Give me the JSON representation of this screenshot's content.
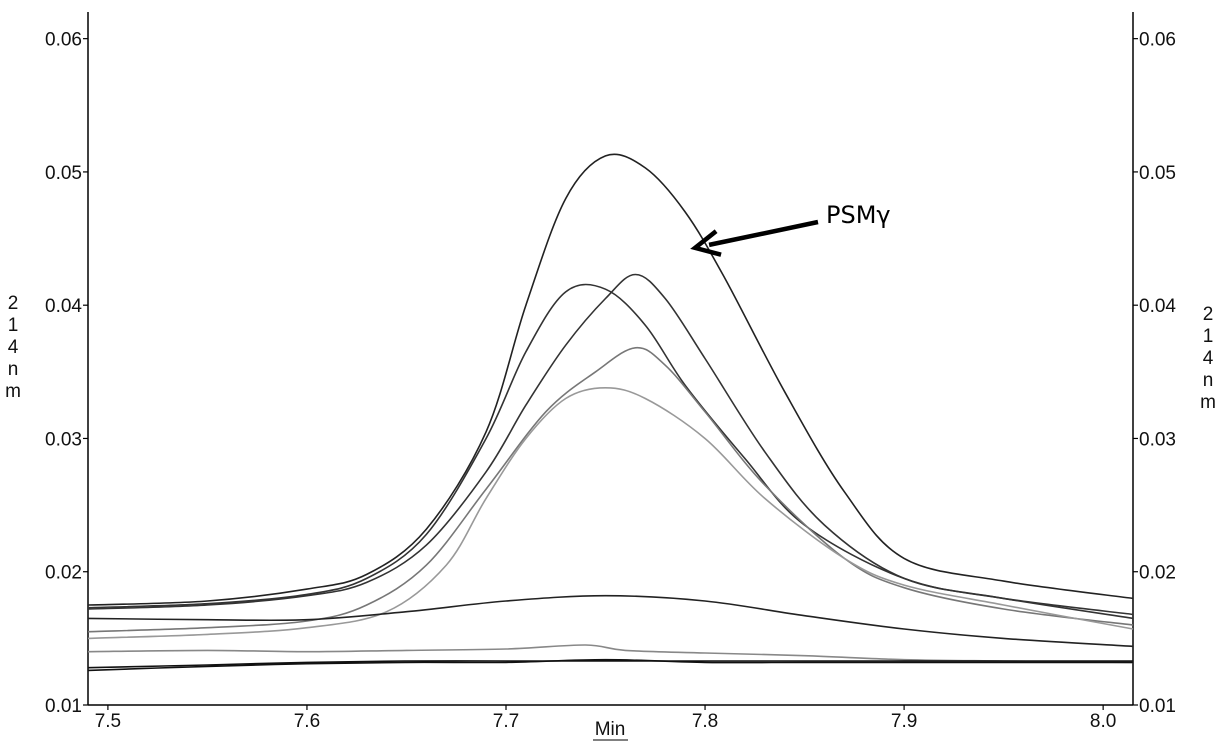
{
  "chart_data": {
    "type": "line",
    "xlabel": "Min",
    "ylabel": "214nm",
    "xlim": [
      7.49,
      8.015
    ],
    "ylim": [
      0.01,
      0.062
    ],
    "x_ticks": [
      "7.5",
      "7.6",
      "7.7",
      "7.8",
      "7.9",
      "8.0"
    ],
    "x_tick_values": [
      7.5,
      7.6,
      7.7,
      7.8,
      7.9,
      8.0
    ],
    "y_ticks": [
      "0.01",
      "0.02",
      "0.03",
      "0.04",
      "0.05",
      "0.06"
    ],
    "y_tick_values": [
      0.01,
      0.02,
      0.03,
      0.04,
      0.05,
      0.06
    ],
    "grid": false,
    "annotation": {
      "text": "PSMγ",
      "x": 7.795,
      "y": 0.0443
    },
    "series": [
      {
        "color": "#222222",
        "x": [
          7.49,
          7.55,
          7.6,
          7.63,
          7.66,
          7.69,
          7.71,
          7.73,
          7.75,
          7.77,
          7.79,
          7.81,
          7.84,
          7.87,
          7.9,
          7.95,
          8.015
        ],
        "y": [
          0.0175,
          0.0178,
          0.0187,
          0.0198,
          0.0232,
          0.0305,
          0.04,
          0.048,
          0.0512,
          0.0503,
          0.047,
          0.042,
          0.0335,
          0.026,
          0.021,
          0.0193,
          0.018
        ]
      },
      {
        "color": "#333333",
        "x": [
          7.49,
          7.55,
          7.6,
          7.63,
          7.66,
          7.69,
          7.71,
          7.73,
          7.75,
          7.77,
          7.79,
          7.82,
          7.85,
          7.9,
          7.95,
          8.015
        ],
        "y": [
          0.0173,
          0.0176,
          0.0183,
          0.0195,
          0.0228,
          0.03,
          0.0365,
          0.041,
          0.0412,
          0.0385,
          0.034,
          0.0285,
          0.0235,
          0.0195,
          0.018,
          0.0168
        ]
      },
      {
        "color": "#333333",
        "x": [
          7.49,
          7.55,
          7.6,
          7.63,
          7.66,
          7.69,
          7.71,
          7.73,
          7.75,
          7.765,
          7.78,
          7.8,
          7.83,
          7.86,
          7.9,
          7.95,
          8.015
        ],
        "y": [
          0.0172,
          0.0175,
          0.0182,
          0.0192,
          0.022,
          0.0275,
          0.0325,
          0.037,
          0.0405,
          0.0423,
          0.0405,
          0.036,
          0.029,
          0.0235,
          0.0195,
          0.018,
          0.0165
        ]
      },
      {
        "color": "#777777",
        "x": [
          7.49,
          7.55,
          7.6,
          7.63,
          7.66,
          7.69,
          7.72,
          7.745,
          7.765,
          7.78,
          7.8,
          7.83,
          7.87,
          7.9,
          7.95,
          8.015
        ],
        "y": [
          0.0155,
          0.0158,
          0.0163,
          0.0175,
          0.0205,
          0.0262,
          0.032,
          0.035,
          0.0368,
          0.0355,
          0.032,
          0.0265,
          0.021,
          0.0188,
          0.0172,
          0.016
        ]
      },
      {
        "color": "#999999",
        "x": [
          7.49,
          7.55,
          7.6,
          7.64,
          7.67,
          7.69,
          7.71,
          7.73,
          7.75,
          7.77,
          7.8,
          7.83,
          7.87,
          7.9,
          7.95,
          8.015
        ],
        "y": [
          0.015,
          0.0153,
          0.0158,
          0.017,
          0.0205,
          0.0255,
          0.03,
          0.033,
          0.0338,
          0.033,
          0.03,
          0.0255,
          0.021,
          0.019,
          0.0175,
          0.0157
        ]
      },
      {
        "color": "#222222",
        "x": [
          7.49,
          7.55,
          7.6,
          7.65,
          7.7,
          7.75,
          7.8,
          7.85,
          7.9,
          7.95,
          8.015
        ],
        "y": [
          0.0165,
          0.0164,
          0.0164,
          0.017,
          0.0178,
          0.0182,
          0.0178,
          0.0167,
          0.0157,
          0.015,
          0.0144
        ]
      },
      {
        "color": "#888888",
        "x": [
          7.49,
          7.55,
          7.6,
          7.65,
          7.7,
          7.74,
          7.76,
          7.8,
          7.85,
          7.9,
          7.95,
          8.015
        ],
        "y": [
          0.014,
          0.0141,
          0.014,
          0.0141,
          0.0142,
          0.0145,
          0.0141,
          0.0139,
          0.0137,
          0.0134,
          0.0133,
          0.0132
        ]
      },
      {
        "color": "#111111",
        "x": [
          7.49,
          7.55,
          7.6,
          7.65,
          7.7,
          7.75,
          7.8,
          7.85,
          7.9,
          7.95,
          8.015
        ],
        "y": [
          0.0128,
          0.013,
          0.0132,
          0.0133,
          0.0133,
          0.0133,
          0.0133,
          0.0133,
          0.0133,
          0.0133,
          0.0133
        ]
      },
      {
        "color": "#111111",
        "x": [
          7.49,
          7.55,
          7.6,
          7.65,
          7.7,
          7.75,
          7.8,
          7.85,
          7.9,
          7.95,
          8.015
        ],
        "y": [
          0.0126,
          0.0129,
          0.0131,
          0.0132,
          0.0132,
          0.0134,
          0.0132,
          0.0132,
          0.0132,
          0.0132,
          0.0132
        ]
      }
    ]
  }
}
